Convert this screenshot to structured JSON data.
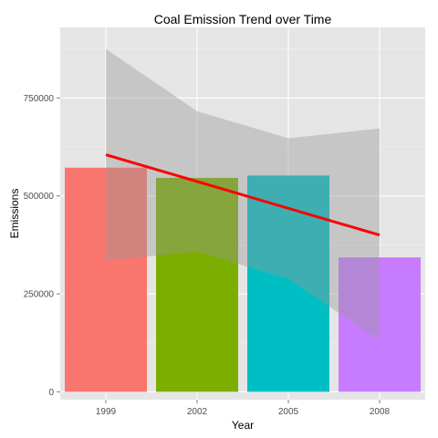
{
  "chart_data": {
    "type": "bar",
    "title": "Coal Emission Trend over Time",
    "xlabel": "Year",
    "ylabel": "Emissions",
    "categories": [
      "1999",
      "2002",
      "2005",
      "2008"
    ],
    "values": [
      572000,
      546000,
      552000,
      343000
    ],
    "bar_colors": [
      "#F8766D",
      "#7CAE00",
      "#00BFC4",
      "#C77CFF"
    ],
    "ylim": [
      -20000,
      930000
    ],
    "yticks": [
      0,
      250000,
      500000,
      750000
    ],
    "ytick_labels": [
      "0",
      "250000",
      "500000",
      "750000"
    ],
    "grid": true,
    "legend": "none",
    "trend_line": {
      "color": "#FF0000",
      "x": [
        "1999",
        "2008"
      ],
      "y": [
        605000,
        400000
      ]
    },
    "confidence_band": {
      "color": "#999999",
      "x": [
        "1999",
        "2002",
        "2005",
        "2008"
      ],
      "upper": [
        875000,
        716000,
        647000,
        672000
      ],
      "lower": [
        335000,
        358000,
        288000,
        132000
      ]
    }
  }
}
